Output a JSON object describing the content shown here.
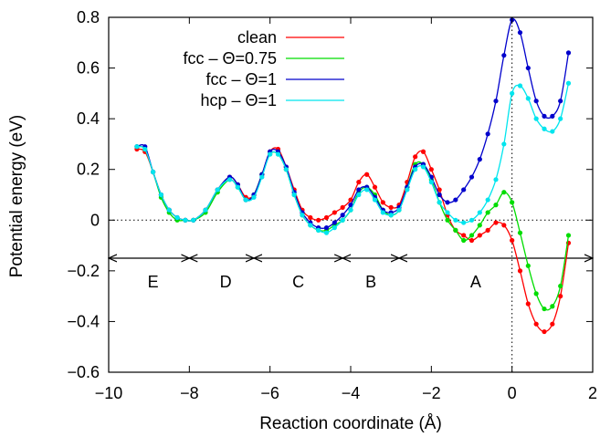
{
  "chart_data": {
    "type": "line",
    "title": "",
    "xlabel": "Reaction coordinate (Å)",
    "ylabel": "Potential energy (eV)",
    "xlim": [
      -10,
      2
    ],
    "ylim": [
      -0.6,
      0.8
    ],
    "xticks": [
      -10,
      -8,
      -6,
      -4,
      -2,
      0,
      2
    ],
    "yticks": [
      -0.6,
      -0.4,
      -0.2,
      0,
      0.2,
      0.4,
      0.6,
      0.8
    ],
    "xtick_labels": [
      "−10",
      "−8",
      "−6",
      "−4",
      "−2",
      "0",
      "2"
    ],
    "ytick_labels": [
      "−0.6",
      "−0.4",
      "−0.2",
      "0",
      "0.2",
      "0.4",
      "0.6",
      "0.8"
    ],
    "grid": false,
    "legend_position": "top-left",
    "reference_lines": {
      "y": 0,
      "x": 0
    },
    "region_arrow_y": -0.15,
    "region_boundaries": [
      -10,
      -8,
      -6.4,
      -4.2,
      -2.8,
      2
    ],
    "regions": [
      {
        "label": "E",
        "x": -8.9
      },
      {
        "label": "D",
        "x": -7.1
      },
      {
        "label": "C",
        "x": -5.3
      },
      {
        "label": "B",
        "x": -3.5
      },
      {
        "label": "A",
        "x": -0.9
      }
    ],
    "series": [
      {
        "name": "clean",
        "color": "#ff0000",
        "x": [
          -9.3,
          -9.1,
          -8.9,
          -8.7,
          -8.5,
          -8.3,
          -8.1,
          -7.9,
          -7.6,
          -7.3,
          -7.0,
          -6.8,
          -6.6,
          -6.4,
          -6.2,
          -6.0,
          -5.8,
          -5.6,
          -5.4,
          -5.2,
          -5.0,
          -4.8,
          -4.6,
          -4.4,
          -4.2,
          -4.0,
          -3.8,
          -3.6,
          -3.4,
          -3.2,
          -3.0,
          -2.8,
          -2.6,
          -2.4,
          -2.2,
          -2.0,
          -1.8,
          -1.6,
          -1.4,
          -1.2,
          -1.0,
          -0.8,
          -0.6,
          -0.4,
          -0.2,
          0.0,
          0.2,
          0.4,
          0.6,
          0.8,
          1.0,
          1.2,
          1.4
        ],
        "y": [
          0.28,
          0.27,
          0.19,
          0.1,
          0.04,
          0.01,
          0.0,
          0.0,
          0.04,
          0.12,
          0.17,
          0.14,
          0.09,
          0.1,
          0.18,
          0.27,
          0.28,
          0.21,
          0.12,
          0.04,
          0.01,
          0.0,
          0.01,
          0.03,
          0.05,
          0.08,
          0.15,
          0.18,
          0.13,
          0.07,
          0.05,
          0.06,
          0.15,
          0.25,
          0.27,
          0.2,
          0.12,
          0.02,
          -0.04,
          -0.06,
          -0.08,
          -0.06,
          -0.04,
          -0.01,
          -0.02,
          -0.08,
          -0.2,
          -0.33,
          -0.41,
          -0.44,
          -0.41,
          -0.3,
          -0.09
        ]
      },
      {
        "name": "fcc – Θ=0.75",
        "color": "#00dd00",
        "x": [
          -9.3,
          -9.1,
          -8.9,
          -8.7,
          -8.5,
          -8.3,
          -8.1,
          -7.9,
          -7.6,
          -7.3,
          -7.0,
          -6.8,
          -6.6,
          -6.4,
          -6.2,
          -6.0,
          -5.8,
          -5.6,
          -5.4,
          -5.2,
          -5.0,
          -4.8,
          -4.6,
          -4.4,
          -4.2,
          -4.0,
          -3.8,
          -3.6,
          -3.4,
          -3.2,
          -3.0,
          -2.8,
          -2.6,
          -2.4,
          -2.2,
          -2.0,
          -1.8,
          -1.6,
          -1.4,
          -1.2,
          -1.0,
          -0.8,
          -0.6,
          -0.4,
          -0.2,
          0.0,
          0.2,
          0.4,
          0.6,
          0.8,
          1.0,
          1.2,
          1.4
        ],
        "y": [
          0.29,
          0.28,
          0.19,
          0.09,
          0.03,
          0.0,
          0.0,
          0.0,
          0.03,
          0.11,
          0.16,
          0.13,
          0.08,
          0.1,
          0.18,
          0.26,
          0.26,
          0.2,
          0.1,
          0.02,
          -0.02,
          -0.04,
          -0.04,
          -0.02,
          0.0,
          0.04,
          0.11,
          0.13,
          0.1,
          0.04,
          0.02,
          0.04,
          0.13,
          0.22,
          0.22,
          0.16,
          0.07,
          0.0,
          -0.04,
          -0.08,
          -0.06,
          -0.02,
          0.03,
          0.06,
          0.11,
          0.07,
          -0.05,
          -0.18,
          -0.29,
          -0.35,
          -0.34,
          -0.26,
          -0.06
        ]
      },
      {
        "name": "fcc – Θ=1",
        "color": "#0000cc",
        "x": [
          -9.3,
          -9.1,
          -8.9,
          -8.7,
          -8.5,
          -8.3,
          -8.1,
          -7.9,
          -7.6,
          -7.3,
          -7.0,
          -6.8,
          -6.6,
          -6.4,
          -6.2,
          -6.0,
          -5.8,
          -5.6,
          -5.4,
          -5.2,
          -5.0,
          -4.8,
          -4.6,
          -4.4,
          -4.2,
          -4.0,
          -3.8,
          -3.6,
          -3.4,
          -3.2,
          -3.0,
          -2.8,
          -2.6,
          -2.4,
          -2.2,
          -2.0,
          -1.8,
          -1.6,
          -1.4,
          -1.2,
          -1.0,
          -0.8,
          -0.6,
          -0.4,
          -0.2,
          0.0,
          0.2,
          0.4,
          0.6,
          0.8,
          1.0,
          1.2,
          1.4
        ],
        "y": [
          0.29,
          0.29,
          0.19,
          0.1,
          0.04,
          0.01,
          0.0,
          0.0,
          0.04,
          0.12,
          0.17,
          0.14,
          0.08,
          0.1,
          0.18,
          0.27,
          0.27,
          0.21,
          0.11,
          0.03,
          -0.01,
          -0.03,
          -0.03,
          -0.01,
          0.02,
          0.06,
          0.12,
          0.13,
          0.09,
          0.04,
          0.03,
          0.05,
          0.13,
          0.21,
          0.22,
          0.17,
          0.1,
          0.07,
          0.08,
          0.12,
          0.17,
          0.24,
          0.34,
          0.47,
          0.65,
          0.79,
          0.74,
          0.6,
          0.47,
          0.41,
          0.41,
          0.47,
          0.66
        ]
      },
      {
        "name": "hcp – Θ=1",
        "color": "#00e5ee",
        "x": [
          -9.3,
          -9.1,
          -8.9,
          -8.7,
          -8.5,
          -8.3,
          -8.1,
          -7.9,
          -7.6,
          -7.3,
          -7.0,
          -6.8,
          -6.6,
          -6.4,
          -6.2,
          -6.0,
          -5.8,
          -5.6,
          -5.4,
          -5.2,
          -5.0,
          -4.8,
          -4.6,
          -4.4,
          -4.2,
          -4.0,
          -3.8,
          -3.6,
          -3.4,
          -3.2,
          -3.0,
          -2.8,
          -2.6,
          -2.4,
          -2.2,
          -2.0,
          -1.8,
          -1.6,
          -1.4,
          -1.2,
          -1.0,
          -0.8,
          -0.6,
          -0.4,
          -0.2,
          0.0,
          0.2,
          0.4,
          0.6,
          0.8,
          1.0,
          1.2,
          1.4
        ],
        "y": [
          0.29,
          0.28,
          0.19,
          0.1,
          0.04,
          0.01,
          0.0,
          0.0,
          0.04,
          0.12,
          0.16,
          0.13,
          0.08,
          0.09,
          0.17,
          0.26,
          0.26,
          0.2,
          0.1,
          0.02,
          -0.02,
          -0.04,
          -0.05,
          -0.03,
          0.0,
          0.04,
          0.1,
          0.12,
          0.08,
          0.03,
          0.02,
          0.04,
          0.12,
          0.2,
          0.21,
          0.15,
          0.07,
          0.03,
          0.0,
          -0.01,
          0.0,
          0.03,
          0.08,
          0.16,
          0.3,
          0.5,
          0.53,
          0.48,
          0.4,
          0.36,
          0.35,
          0.4,
          0.54
        ]
      }
    ]
  }
}
